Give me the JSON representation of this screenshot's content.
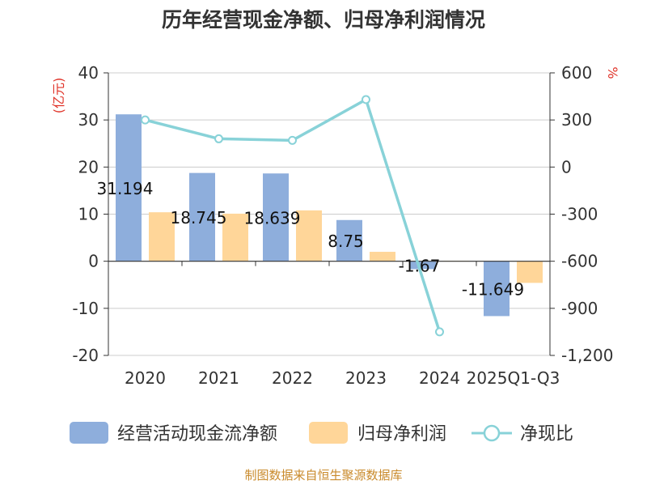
{
  "chart_data": {
    "type": "bar",
    "title": "历年经营现金净额、归母净利润情况",
    "categories": [
      "2020",
      "2021",
      "2022",
      "2023",
      "2024",
      "2025Q1-Q3"
    ],
    "y_left": {
      "label": "(亿元)",
      "ticks": [
        40,
        30,
        20,
        10,
        0,
        -10,
        -20
      ],
      "ylim": [
        -20,
        40
      ]
    },
    "y_right": {
      "label": "%",
      "ticks": [
        "600",
        "300",
        "0",
        "-300",
        "-600",
        "-900",
        "-1,200"
      ],
      "ylim": [
        -1200,
        600
      ]
    },
    "series": [
      {
        "name": "经营活动现金流净额",
        "type": "bar",
        "axis": "left",
        "color": "#8eaedc",
        "values": [
          31.194,
          18.745,
          18.639,
          8.75,
          -1.67,
          -11.649
        ],
        "labels": [
          "31.194",
          "18.745",
          "18.639",
          "8.75",
          "-1.67",
          "-11.649"
        ]
      },
      {
        "name": "归母净利润",
        "type": "bar",
        "axis": "left",
        "color": "#ffd699",
        "values": [
          10.4,
          10.1,
          10.8,
          2.0,
          0.1,
          -4.6
        ]
      },
      {
        "name": "净现比",
        "type": "line",
        "axis": "right",
        "color": "#88d2d8",
        "values": [
          300,
          180,
          170,
          430,
          -1050,
          null
        ]
      }
    ],
    "legend_position": "bottom",
    "grid": true,
    "source": "制图数据来自恒生聚源数据库"
  }
}
